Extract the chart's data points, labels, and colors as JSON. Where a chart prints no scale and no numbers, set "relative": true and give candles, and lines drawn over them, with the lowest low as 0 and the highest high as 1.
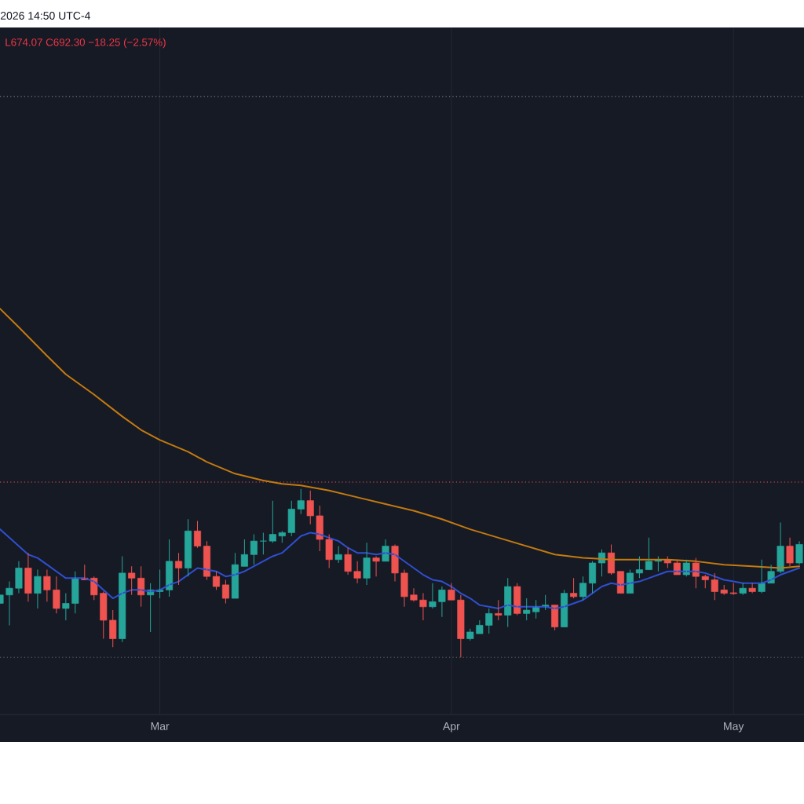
{
  "chart_data": {
    "type": "candlestick",
    "relative": true,
    "annotations": [
      "2026 14:50 UTC-4",
      "L674.07 C692.30 −18.25 (−2.57%)"
    ],
    "x": [
      "2026-02-12",
      "2026-02-13",
      "2026-02-14",
      "2026-02-15",
      "2026-02-16",
      "2026-02-17",
      "2026-02-18",
      "2026-02-19",
      "2026-02-20",
      "2026-02-21",
      "2026-02-22",
      "2026-02-23",
      "2026-02-24",
      "2026-02-25",
      "2026-02-26",
      "2026-02-27",
      "2026-02-28",
      "2026-03-01",
      "2026-03-02",
      "2026-03-03",
      "2026-03-04",
      "2026-03-05",
      "2026-03-06",
      "2026-03-07",
      "2026-03-08",
      "2026-03-09",
      "2026-03-10",
      "2026-03-11",
      "2026-03-12",
      "2026-03-13",
      "2026-03-14",
      "2026-03-15",
      "2026-03-16",
      "2026-03-17",
      "2026-03-18",
      "2026-03-19",
      "2026-03-20",
      "2026-03-21",
      "2026-03-22",
      "2026-03-23",
      "2026-03-24",
      "2026-03-25",
      "2026-03-26",
      "2026-03-27",
      "2026-03-28",
      "2026-03-29",
      "2026-03-30",
      "2026-03-31",
      "2026-04-01",
      "2026-04-02",
      "2026-04-03",
      "2026-04-04",
      "2026-04-05",
      "2026-04-06",
      "2026-04-07",
      "2026-04-08",
      "2026-04-09",
      "2026-04-10",
      "2026-04-11",
      "2026-04-12",
      "2026-04-13",
      "2026-04-14",
      "2026-04-15",
      "2026-04-16",
      "2026-04-17",
      "2026-04-18",
      "2026-04-19",
      "2026-04-20",
      "2026-04-21",
      "2026-04-22",
      "2026-04-23",
      "2026-04-24",
      "2026-04-25",
      "2026-04-26",
      "2026-04-27",
      "2026-04-28",
      "2026-04-29",
      "2026-04-30",
      "2026-05-01",
      "2026-05-02",
      "2026-05-03",
      "2026-05-04",
      "2026-05-05",
      "2026-05-06",
      "2026-05-07",
      "2026-05-08"
    ],
    "ohlc": [
      [
        0.32,
        0.37,
        0.32,
        0.37
      ],
      [
        0.37,
        0.45,
        0.19,
        0.41
      ],
      [
        0.41,
        0.57,
        0.38,
        0.53
      ],
      [
        0.53,
        0.62,
        0.33,
        0.38
      ],
      [
        0.38,
        0.52,
        0.29,
        0.48
      ],
      [
        0.48,
        0.52,
        0.33,
        0.4
      ],
      [
        0.4,
        0.48,
        0.26,
        0.29
      ],
      [
        0.29,
        0.38,
        0.22,
        0.32
      ],
      [
        0.32,
        0.51,
        0.26,
        0.47
      ],
      [
        0.47,
        0.55,
        0.46,
        0.46
      ],
      [
        0.47,
        0.48,
        0.34,
        0.37
      ],
      [
        0.38,
        0.39,
        0.11,
        0.22
      ],
      [
        0.22,
        0.28,
        0.06,
        0.11
      ],
      [
        0.11,
        0.6,
        0.09,
        0.5
      ],
      [
        0.5,
        0.54,
        0.37,
        0.47
      ],
      [
        0.47,
        0.54,
        0.3,
        0.37
      ],
      [
        0.37,
        0.44,
        0.15,
        0.4
      ],
      [
        0.39,
        0.52,
        0.35,
        0.4
      ],
      [
        0.4,
        0.7,
        0.36,
        0.57
      ],
      [
        0.57,
        0.62,
        0.43,
        0.53
      ],
      [
        0.53,
        0.82,
        0.48,
        0.75
      ],
      [
        0.75,
        0.81,
        0.65,
        0.66
      ],
      [
        0.66,
        0.69,
        0.46,
        0.48
      ],
      [
        0.48,
        0.51,
        0.4,
        0.42
      ],
      [
        0.43,
        0.46,
        0.32,
        0.35
      ],
      [
        0.35,
        0.62,
        0.35,
        0.55
      ],
      [
        0.54,
        0.7,
        0.54,
        0.61
      ],
      [
        0.61,
        0.73,
        0.55,
        0.69
      ],
      [
        0.69,
        0.74,
        0.61,
        0.69
      ],
      [
        0.69,
        0.93,
        0.68,
        0.73
      ],
      [
        0.72,
        0.75,
        0.68,
        0.74
      ],
      [
        0.74,
        0.93,
        0.72,
        0.88
      ],
      [
        0.88,
        1,
        0.85,
        0.93
      ],
      [
        0.93,
        0.99,
        0.79,
        0.84
      ],
      [
        0.84,
        0.9,
        0.63,
        0.7
      ],
      [
        0.7,
        0.73,
        0.53,
        0.58
      ],
      [
        0.58,
        0.66,
        0.56,
        0.61
      ],
      [
        0.61,
        0.65,
        0.49,
        0.51
      ],
      [
        0.51,
        0.57,
        0.44,
        0.47
      ],
      [
        0.47,
        0.68,
        0.43,
        0.59
      ],
      [
        0.59,
        0.6,
        0.48,
        0.57
      ],
      [
        0.57,
        0.7,
        0.57,
        0.66
      ],
      [
        0.66,
        0.67,
        0.45,
        0.5
      ],
      [
        0.5,
        0.52,
        0.3,
        0.36
      ],
      [
        0.37,
        0.41,
        0.33,
        0.34
      ],
      [
        0.34,
        0.38,
        0.22,
        0.3
      ],
      [
        0.3,
        0.44,
        0.29,
        0.33
      ],
      [
        0.33,
        0.42,
        0.24,
        0.4
      ],
      [
        0.4,
        0.44,
        0.34,
        0.34
      ],
      [
        0.34,
        0.37,
        0,
        0.11
      ],
      [
        0.11,
        0.17,
        0.1,
        0.15
      ],
      [
        0.14,
        0.22,
        0.14,
        0.19
      ],
      [
        0.19,
        0.29,
        0.14,
        0.26
      ],
      [
        0.26,
        0.34,
        0.22,
        0.25
      ],
      [
        0.25,
        0.47,
        0.18,
        0.42
      ],
      [
        0.42,
        0.44,
        0.25,
        0.26
      ],
      [
        0.26,
        0.35,
        0.22,
        0.28
      ],
      [
        0.27,
        0.34,
        0.23,
        0.3
      ],
      [
        0.3,
        0.37,
        0.28,
        0.31
      ],
      [
        0.31,
        0.31,
        0.16,
        0.18
      ],
      [
        0.18,
        0.4,
        0.18,
        0.38
      ],
      [
        0.38,
        0.47,
        0.35,
        0.36
      ],
      [
        0.36,
        0.48,
        0.34,
        0.44
      ],
      [
        0.44,
        0.57,
        0.38,
        0.56
      ],
      [
        0.56,
        0.64,
        0.48,
        0.62
      ],
      [
        0.62,
        0.67,
        0.49,
        0.5
      ],
      [
        0.51,
        0.51,
        0.38,
        0.38
      ],
      [
        0.38,
        0.52,
        0.38,
        0.5
      ],
      [
        0.5,
        0.6,
        0.47,
        0.52
      ],
      [
        0.52,
        0.71,
        0.52,
        0.57
      ],
      [
        0.57,
        0.6,
        0.51,
        0.58
      ],
      [
        0.58,
        0.6,
        0.53,
        0.56
      ],
      [
        0.56,
        0.58,
        0.49,
        0.49
      ],
      [
        0.49,
        0.58,
        0.48,
        0.56
      ],
      [
        0.56,
        0.59,
        0.41,
        0.48
      ],
      [
        0.48,
        0.49,
        0.41,
        0.46
      ],
      [
        0.46,
        0.5,
        0.34,
        0.39
      ],
      [
        0.4,
        0.43,
        0.37,
        0.38
      ],
      [
        0.383,
        0.44,
        0.37,
        0.378
      ],
      [
        0.38,
        0.44,
        0.37,
        0.41
      ],
      [
        0.41,
        0.44,
        0.38,
        0.39
      ],
      [
        0.39,
        0.58,
        0.38,
        0.44
      ],
      [
        0.44,
        0.55,
        0.44,
        0.51
      ],
      [
        0.51,
        0.8,
        0.5,
        0.66
      ],
      [
        0.66,
        0.71,
        0.54,
        0.56
      ],
      [
        0.56,
        0.69,
        0.55,
        0.67
      ]
    ],
    "colors": [
      "#26a69a",
      "#26a69a",
      "#26a69a",
      "#ef5350",
      "#26a69a",
      "#ef5350",
      "#ef5350",
      "#26a69a",
      "#26a69a",
      "#ef5350",
      "#ef5350",
      "#ef5350",
      "#ef5350",
      "#26a69a",
      "#ef5350",
      "#ef5350",
      "#26a69a",
      "#26a69a",
      "#26a69a",
      "#ef5350",
      "#26a69a",
      "#ef5350",
      "#ef5350",
      "#ef5350",
      "#ef5350",
      "#26a69a",
      "#26a69a",
      "#26a69a",
      "#26a69a",
      "#26a69a",
      "#26a69a",
      "#26a69a",
      "#26a69a",
      "#ef5350",
      "#ef5350",
      "#ef5350",
      "#26a69a",
      "#ef5350",
      "#ef5350",
      "#26a69a",
      "#ef5350",
      "#26a69a",
      "#ef5350",
      "#ef5350",
      "#ef5350",
      "#ef5350",
      "#26a69a",
      "#26a69a",
      "#ef5350",
      "#ef5350",
      "#26a69a",
      "#26a69a",
      "#26a69a",
      "#ef5350",
      "#26a69a",
      "#ef5350",
      "#26a69a",
      "#26a69a",
      "#26a69a",
      "#ef5350",
      "#26a69a",
      "#ef5350",
      "#26a69a",
      "#26a69a",
      "#26a69a",
      "#ef5350",
      "#ef5350",
      "#26a69a",
      "#26a69a",
      "#26a69a",
      "#26a69a",
      "#ef5350",
      "#ef5350",
      "#26a69a",
      "#ef5350",
      "#ef5350",
      "#ef5350",
      "#ef5350",
      "#ef5350",
      "#26a69a",
      "#ef5350",
      "#26a69a",
      "#26a69a",
      "#26a69a",
      "#ef5350",
      "#26a69a"
    ],
    "series": [
      {
        "type": "line",
        "color": "#2f4fd0",
        "values": [
          0.76,
          0.71,
          0.66,
          0.61,
          0.59,
          0.55,
          0.51,
          0.47,
          0.47,
          0.47,
          0.45,
          0.4,
          0.35,
          0.38,
          0.4,
          0.4,
          0.39,
          0.4,
          0.43,
          0.45,
          0.49,
          0.53,
          0.52,
          0.51,
          0.48,
          0.49,
          0.51,
          0.54,
          0.57,
          0.6,
          0.62,
          0.67,
          0.72,
          0.74,
          0.73,
          0.71,
          0.69,
          0.65,
          0.62,
          0.62,
          0.61,
          0.62,
          0.61,
          0.57,
          0.53,
          0.49,
          0.46,
          0.45,
          0.42,
          0.38,
          0.35,
          0.31,
          0.3,
          0.29,
          0.31,
          0.3,
          0.3,
          0.3,
          0.3,
          0.29,
          0.3,
          0.32,
          0.34,
          0.38,
          0.42,
          0.44,
          0.43,
          0.44,
          0.45,
          0.47,
          0.49,
          0.51,
          0.51,
          0.51,
          0.51,
          0.5,
          0.48,
          0.46,
          0.45,
          0.44,
          0.44,
          0.44,
          0.46,
          0.49,
          0.51,
          0.53
        ]
      },
      {
        "type": "line",
        "color": "#c47a10",
        "x": [
          "2026-02-12",
          "2026-02-14",
          "2026-02-17",
          "2026-02-19",
          "2026-02-22",
          "2026-02-25",
          "2026-02-27",
          "2026-03-01",
          "2026-03-04",
          "2026-03-06",
          "2026-03-09",
          "2026-03-12",
          "2026-03-14",
          "2026-03-16",
          "2026-03-19",
          "2026-03-22",
          "2026-03-25",
          "2026-03-28",
          "2026-03-31",
          "2026-04-03",
          "2026-04-06",
          "2026-04-09",
          "2026-04-12",
          "2026-04-15",
          "2026-04-18",
          "2026-04-21",
          "2026-04-24",
          "2026-04-27",
          "2026-04-30",
          "2026-05-03",
          "2026-05-06",
          "2026-05-08"
        ],
        "values": [
          2.07,
          1.96,
          1.79,
          1.68,
          1.56,
          1.43,
          1.35,
          1.29,
          1.22,
          1.16,
          1.09,
          1.05,
          1.03,
          1.02,
          0.99,
          0.95,
          0.91,
          0.87,
          0.82,
          0.76,
          0.71,
          0.66,
          0.61,
          0.59,
          0.58,
          0.58,
          0.58,
          0.57,
          0.55,
          0.54,
          0.53,
          0.54
        ]
      }
    ],
    "xlim": [
      "2026-02-12",
      "2026-05-08T12:00"
    ],
    "xticks": [
      {
        "value": "2026-03-01",
        "label": "Mar"
      },
      {
        "value": "2026-04-01",
        "label": "Apr"
      },
      {
        "value": "2026-05-01",
        "label": "May"
      }
    ],
    "grid": "x",
    "ref_lines": [
      {
        "axis": "y",
        "value": 1.04,
        "color": "#ef5350",
        "line_style": "dotted"
      },
      {
        "axis": "y",
        "value": 3.33,
        "color": "#787b86",
        "line_style": "dotted"
      },
      {
        "axis": "y",
        "value": 0,
        "color": "#787b86",
        "line_style": "dotted"
      }
    ]
  }
}
